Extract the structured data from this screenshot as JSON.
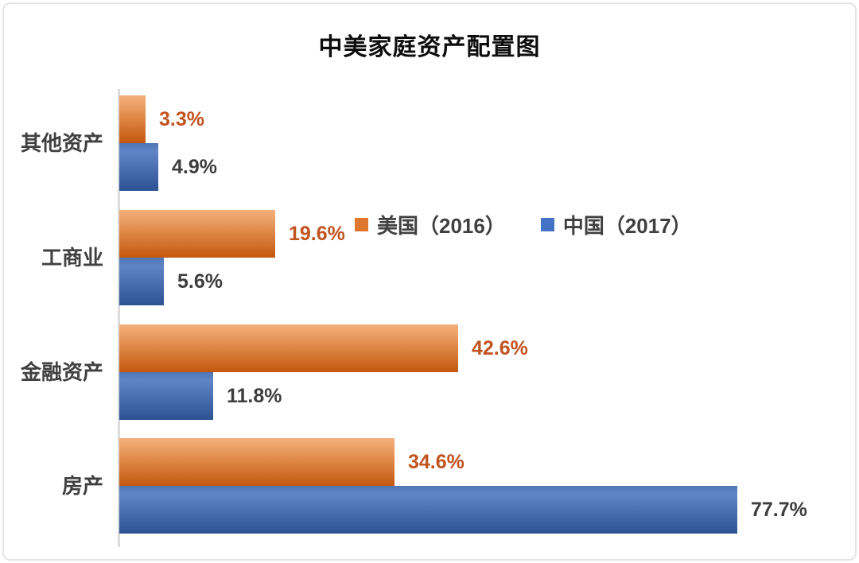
{
  "chart_data": {
    "type": "bar",
    "orientation": "horizontal",
    "title": "中美家庭资产配置图",
    "categories": [
      "其他资产",
      "工商业",
      "金融资产",
      "房产"
    ],
    "series": [
      {
        "key": "us",
        "name": "美国（2016）",
        "values": [
          3.3,
          19.6,
          42.6,
          34.6
        ],
        "gradient": [
          "#f2ae7c",
          "#eda267",
          "#c4570e"
        ],
        "label_color": "#c1531f",
        "legend_color": "#e0772e"
      },
      {
        "key": "cn",
        "name": "中国（2017）",
        "values": [
          4.9,
          5.6,
          11.8,
          77.7
        ],
        "gradient": [
          "#4f75b3",
          "#5f85c7",
          "#2d5294"
        ],
        "label_color": "#3d3d3d",
        "legend_color": "#4472c4"
      }
    ],
    "value_suffix": "%",
    "data_labels": true,
    "xlim": [
      0,
      90
    ],
    "grid": false,
    "legend_position": "inside-top-right",
    "axis_color": "#dcdcdc",
    "category_label_color": "#404040",
    "title_color": "#0d0d0d"
  }
}
